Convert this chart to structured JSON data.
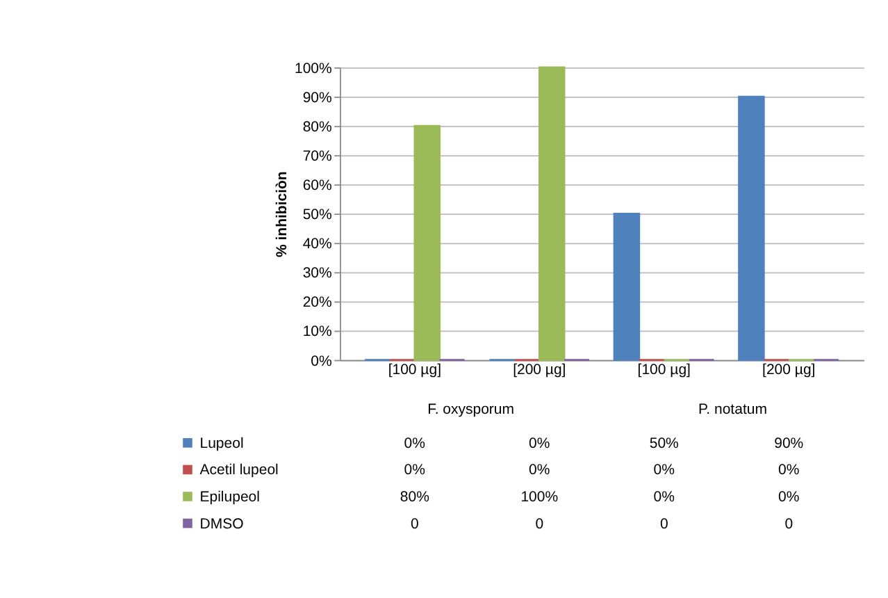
{
  "chart_data": {
    "type": "bar",
    "ylabel": "% inhibiciòn",
    "categories": [
      "[100 µg]",
      "[200 µg]",
      "[100 µg]",
      "[200 µg]"
    ],
    "annotations": [
      "F. oxysporum",
      "P. notatum"
    ],
    "series": [
      {
        "name": "Lupeol",
        "color": "#4f81bd",
        "values": [
          0,
          0,
          50,
          90
        ],
        "value_labels": [
          "0%",
          "0%",
          "50%",
          "90%"
        ]
      },
      {
        "name": "Acetil lupeol",
        "color": "#c0504d",
        "values": [
          0,
          0,
          0,
          0
        ],
        "value_labels": [
          "0%",
          "0%",
          "0%",
          "0%"
        ]
      },
      {
        "name": "Epilupeol",
        "color": "#9bbb59",
        "values": [
          80,
          100,
          0,
          0
        ],
        "value_labels": [
          "80%",
          "100%",
          "0%",
          "0%"
        ]
      },
      {
        "name": "DMSO",
        "color": "#8064a2",
        "values": [
          0,
          0,
          0,
          0
        ],
        "value_labels": [
          "0",
          "0",
          "0",
          "0"
        ]
      }
    ],
    "ylim": [
      0,
      100
    ],
    "yticks": [
      {
        "value": 0,
        "label": "0%"
      },
      {
        "value": 10,
        "label": "10%"
      },
      {
        "value": 20,
        "label": "20%"
      },
      {
        "value": 30,
        "label": "30%"
      },
      {
        "value": 40,
        "label": "40%"
      },
      {
        "value": 50,
        "label": "50%"
      },
      {
        "value": 60,
        "label": "60%"
      },
      {
        "value": 70,
        "label": "70%"
      },
      {
        "value": 80,
        "label": "80%"
      },
      {
        "value": 90,
        "label": "90%"
      },
      {
        "value": 100,
        "label": "100%"
      }
    ],
    "grid": "y",
    "legend": "bottom"
  }
}
